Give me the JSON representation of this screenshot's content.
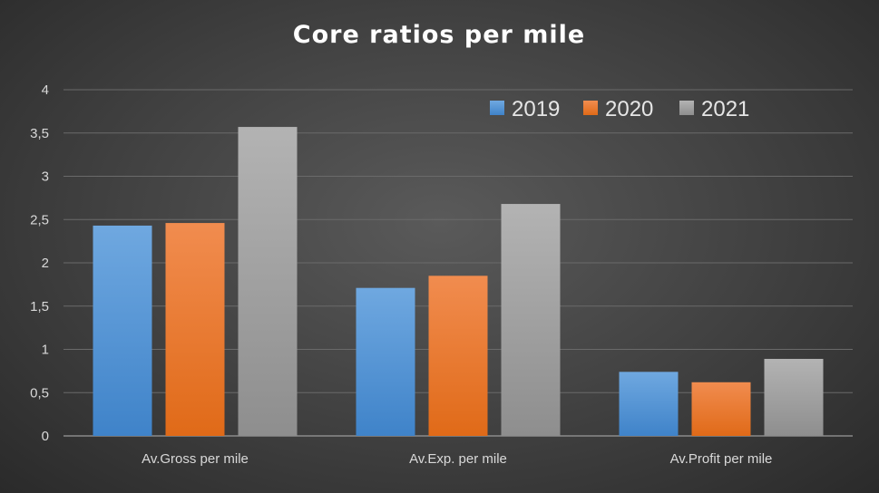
{
  "chart_data": {
    "type": "bar",
    "title": "Core ratios per mile",
    "categories": [
      "Av.Gross per mile",
      "Av.Exp. per mile",
      "Av.Profit per mile"
    ],
    "series": [
      {
        "name": "2019",
        "values": [
          2.43,
          1.71,
          0.74
        ],
        "color": "#5b9bd5"
      },
      {
        "name": "2020",
        "values": [
          2.46,
          1.85,
          0.62
        ],
        "color": "#ed7d31"
      },
      {
        "name": "2021",
        "values": [
          3.57,
          2.68,
          0.89
        ],
        "color": "#a5a5a5"
      }
    ],
    "ylim": [
      0,
      4
    ],
    "yticks": [
      "0",
      "0,5",
      "1",
      "1,5",
      "2",
      "2,5",
      "3",
      "3,5",
      "4"
    ],
    "grid": true,
    "legend_position": "top-right"
  }
}
